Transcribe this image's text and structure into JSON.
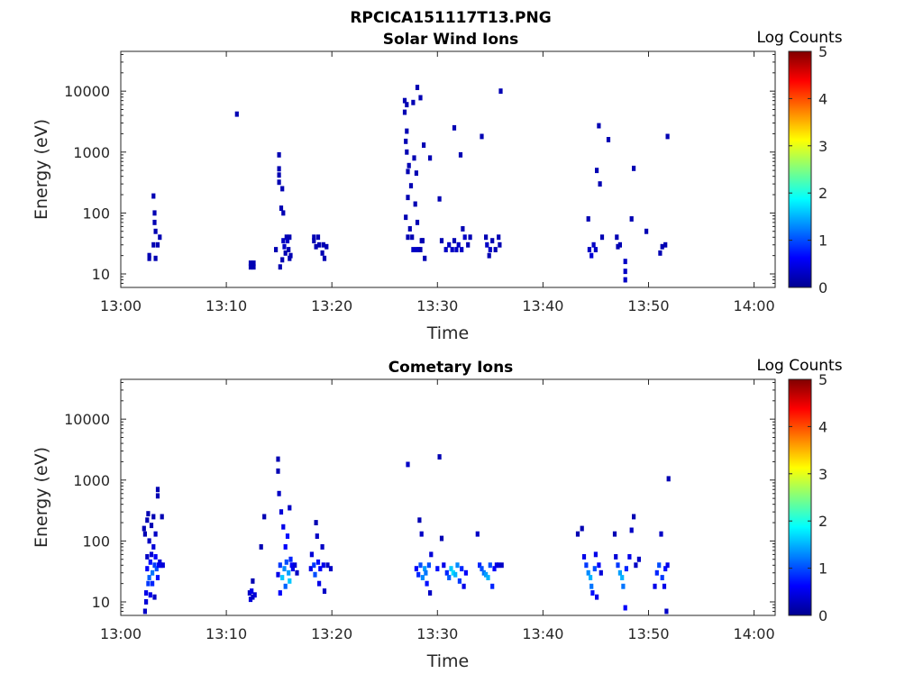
{
  "figure_title": "RPCICA151117T13.PNG",
  "colors": {
    "colormap": [
      "#00008f",
      "#0000ff",
      "#00ffff",
      "#ffff00",
      "#ff0000",
      "#800000"
    ]
  },
  "chart_data": [
    {
      "type": "heatmap",
      "title": "Solar Wind Ions",
      "xlabel": "Time",
      "ylabel": "Energy (eV)",
      "x_ticks": [
        "13:00",
        "13:10",
        "13:20",
        "13:30",
        "13:40",
        "13:50",
        "14:00"
      ],
      "x_range_minutes": [
        0,
        62
      ],
      "y_scale": "log",
      "y_range": [
        6,
        45000
      ],
      "y_ticks": [
        10,
        100,
        1000,
        10000
      ],
      "y_tick_labels": [
        "10",
        "100",
        "1000",
        "10000"
      ],
      "colorbar": {
        "label": "Log Counts",
        "range": [
          0,
          5
        ],
        "ticks": [
          "0",
          "1",
          "2",
          "3",
          "4",
          "5"
        ]
      },
      "cells": [
        [
          2.7,
          18,
          0.2
        ],
        [
          2.7,
          20,
          0.2
        ],
        [
          3.1,
          190,
          0.2
        ],
        [
          3.1,
          30,
          0.2
        ],
        [
          3.2,
          100,
          0.2
        ],
        [
          3.2,
          70,
          0.2
        ],
        [
          3.3,
          50,
          0.2
        ],
        [
          3.3,
          18,
          0.2
        ],
        [
          3.5,
          30,
          0.2
        ],
        [
          3.7,
          40,
          0.2
        ],
        [
          11.0,
          4200,
          0.2
        ],
        [
          12.3,
          13,
          0.2
        ],
        [
          12.3,
          15,
          0.2
        ],
        [
          12.6,
          13,
          0.2
        ],
        [
          12.6,
          15,
          0.2
        ],
        [
          14.7,
          25,
          0.2
        ],
        [
          15.0,
          900,
          0.2
        ],
        [
          15.0,
          530,
          0.2
        ],
        [
          15.0,
          420,
          0.2
        ],
        [
          15.0,
          320,
          0.2
        ],
        [
          15.1,
          13,
          0.2
        ],
        [
          15.2,
          120,
          0.2
        ],
        [
          15.3,
          250,
          0.2
        ],
        [
          15.3,
          17,
          0.2
        ],
        [
          15.4,
          35,
          0.3
        ],
        [
          15.4,
          100,
          0.2
        ],
        [
          15.5,
          28,
          0.3
        ],
        [
          15.6,
          22,
          0.2
        ],
        [
          15.7,
          40,
          0.2
        ],
        [
          15.8,
          35,
          0.3
        ],
        [
          15.9,
          25,
          0.2
        ],
        [
          16.0,
          18,
          0.2
        ],
        [
          16.0,
          40,
          0.2
        ],
        [
          16.1,
          20,
          0.2
        ],
        [
          18.3,
          40,
          0.2
        ],
        [
          18.3,
          35,
          0.2
        ],
        [
          18.5,
          28,
          0.2
        ],
        [
          18.7,
          40,
          0.2
        ],
        [
          18.8,
          30,
          0.2
        ],
        [
          19.1,
          22,
          0.2
        ],
        [
          19.2,
          30,
          0.2
        ],
        [
          19.3,
          18,
          0.2
        ],
        [
          19.5,
          28,
          0.2
        ],
        [
          26.9,
          7000,
          0.2
        ],
        [
          26.9,
          4500,
          0.2
        ],
        [
          27.0,
          1500,
          0.2
        ],
        [
          27.0,
          85,
          0.2
        ],
        [
          27.1,
          6000,
          0.2
        ],
        [
          27.1,
          2200,
          0.2
        ],
        [
          27.1,
          1000,
          0.2
        ],
        [
          27.2,
          480,
          0.2
        ],
        [
          27.2,
          180,
          0.2
        ],
        [
          27.2,
          40,
          0.2
        ],
        [
          27.3,
          600,
          0.2
        ],
        [
          27.4,
          55,
          0.2
        ],
        [
          27.5,
          280,
          0.2
        ],
        [
          27.6,
          40,
          0.2
        ],
        [
          27.7,
          6500,
          0.2
        ],
        [
          27.7,
          25,
          0.3
        ],
        [
          27.8,
          800,
          0.2
        ],
        [
          27.9,
          140,
          0.2
        ],
        [
          28.0,
          450,
          0.2
        ],
        [
          28.0,
          25,
          0.3
        ],
        [
          28.1,
          11500,
          0.2
        ],
        [
          28.1,
          70,
          0.2
        ],
        [
          28.2,
          25,
          0.3
        ],
        [
          28.4,
          7800,
          0.2
        ],
        [
          28.4,
          25,
          0.2
        ],
        [
          28.5,
          35,
          0.2
        ],
        [
          28.6,
          35,
          0.2
        ],
        [
          28.7,
          1300,
          0.2
        ],
        [
          28.8,
          18,
          0.2
        ],
        [
          29.3,
          800,
          0.2
        ],
        [
          30.2,
          170,
          0.2
        ],
        [
          30.4,
          35,
          0.2
        ],
        [
          30.8,
          25,
          0.3
        ],
        [
          31.1,
          30,
          0.3
        ],
        [
          31.4,
          25,
          0.3
        ],
        [
          31.6,
          2500,
          0.2
        ],
        [
          31.6,
          35,
          0.2
        ],
        [
          31.8,
          25,
          0.3
        ],
        [
          32.0,
          30,
          0.3
        ],
        [
          32.2,
          900,
          0.2
        ],
        [
          32.3,
          25,
          0.3
        ],
        [
          32.4,
          55,
          0.2
        ],
        [
          32.6,
          40,
          0.3
        ],
        [
          32.9,
          30,
          0.2
        ],
        [
          33.1,
          40,
          0.2
        ],
        [
          34.2,
          1800,
          0.2
        ],
        [
          34.6,
          40,
          0.2
        ],
        [
          34.7,
          30,
          0.3
        ],
        [
          34.9,
          20,
          0.2
        ],
        [
          35.0,
          25,
          0.3
        ],
        [
          35.2,
          35,
          0.2
        ],
        [
          35.5,
          25,
          0.2
        ],
        [
          35.8,
          40,
          0.2
        ],
        [
          35.9,
          30,
          0.2
        ],
        [
          36.0,
          10000,
          0.2
        ],
        [
          44.3,
          80,
          0.2
        ],
        [
          44.4,
          25,
          0.3
        ],
        [
          44.6,
          20,
          0.4
        ],
        [
          44.8,
          30,
          0.3
        ],
        [
          45.0,
          25,
          0.3
        ],
        [
          45.1,
          500,
          0.2
        ],
        [
          45.3,
          2700,
          0.2
        ],
        [
          45.4,
          300,
          0.2
        ],
        [
          45.6,
          40,
          0.2
        ],
        [
          46.2,
          1600,
          0.2
        ],
        [
          47.0,
          40,
          0.2
        ],
        [
          47.1,
          28,
          0.2
        ],
        [
          47.3,
          30,
          0.2
        ],
        [
          47.8,
          16,
          0.3
        ],
        [
          47.8,
          11,
          0.3
        ],
        [
          47.8,
          8,
          0.3
        ],
        [
          48.4,
          80,
          0.2
        ],
        [
          48.6,
          540,
          0.2
        ],
        [
          49.8,
          50,
          0.2
        ],
        [
          51.1,
          22,
          0.2
        ],
        [
          51.3,
          28,
          0.2
        ],
        [
          51.6,
          30,
          0.2
        ],
        [
          51.8,
          1800,
          0.2
        ]
      ]
    },
    {
      "type": "heatmap",
      "title": "Cometary Ions",
      "xlabel": "Time",
      "ylabel": "Energy (eV)",
      "x_ticks": [
        "13:00",
        "13:10",
        "13:20",
        "13:30",
        "13:40",
        "13:50",
        "14:00"
      ],
      "x_range_minutes": [
        0,
        62
      ],
      "y_scale": "log",
      "y_range": [
        6,
        45000
      ],
      "y_ticks": [
        10,
        100,
        1000,
        10000
      ],
      "y_tick_labels": [
        "10",
        "100",
        "1000",
        "10000"
      ],
      "colorbar": {
        "label": "Log Counts",
        "range": [
          0,
          5
        ],
        "ticks": [
          "0",
          "1",
          "2",
          "3",
          "4",
          "5"
        ]
      },
      "cells": [
        [
          2.2,
          160,
          0.2
        ],
        [
          2.3,
          130,
          0.2
        ],
        [
          2.3,
          7,
          0.3
        ],
        [
          2.4,
          10,
          0.4
        ],
        [
          2.4,
          14,
          0.5
        ],
        [
          2.5,
          220,
          0.2
        ],
        [
          2.5,
          55,
          0.3
        ],
        [
          2.5,
          35,
          0.6
        ],
        [
          2.6,
          20,
          0.9
        ],
        [
          2.6,
          280,
          0.2
        ],
        [
          2.7,
          100,
          0.3
        ],
        [
          2.7,
          25,
          1.1
        ],
        [
          2.8,
          13,
          0.5
        ],
        [
          2.8,
          45,
          0.7
        ],
        [
          2.9,
          180,
          0.2
        ],
        [
          2.9,
          60,
          0.4
        ],
        [
          3.0,
          30,
          1.2
        ],
        [
          3.0,
          20,
          0.8
        ],
        [
          3.1,
          250,
          0.2
        ],
        [
          3.1,
          80,
          0.4
        ],
        [
          3.2,
          40,
          0.9
        ],
        [
          3.2,
          12,
          0.3
        ],
        [
          3.3,
          130,
          0.3
        ],
        [
          3.3,
          55,
          0.6
        ],
        [
          3.4,
          35,
          1.0
        ],
        [
          3.5,
          700,
          0.2
        ],
        [
          3.5,
          550,
          0.2
        ],
        [
          3.5,
          25,
          0.7
        ],
        [
          3.6,
          40,
          0.6
        ],
        [
          3.7,
          45,
          0.4
        ],
        [
          3.8,
          40,
          0.5
        ],
        [
          3.9,
          250,
          0.2
        ],
        [
          4.0,
          40,
          0.4
        ],
        [
          12.2,
          14,
          0.3
        ],
        [
          12.3,
          11,
          0.4
        ],
        [
          12.4,
          15,
          0.5
        ],
        [
          12.5,
          12,
          0.3
        ],
        [
          12.5,
          22,
          0.2
        ],
        [
          12.7,
          13,
          0.4
        ],
        [
          13.3,
          80,
          0.2
        ],
        [
          13.6,
          250,
          0.2
        ],
        [
          14.9,
          2200,
          0.2
        ],
        [
          14.9,
          1400,
          0.2
        ],
        [
          14.9,
          28,
          0.5
        ],
        [
          15.0,
          600,
          0.3
        ],
        [
          15.1,
          40,
          0.9
        ],
        [
          15.1,
          14,
          0.6
        ],
        [
          15.2,
          300,
          0.4
        ],
        [
          15.3,
          25,
          1.6
        ],
        [
          15.4,
          170,
          0.5
        ],
        [
          15.5,
          35,
          1.3
        ],
        [
          15.6,
          18,
          1.1
        ],
        [
          15.6,
          80,
          0.6
        ],
        [
          15.7,
          45,
          1.0
        ],
        [
          15.8,
          120,
          0.7
        ],
        [
          15.9,
          30,
          1.4
        ],
        [
          16.0,
          22,
          1.6
        ],
        [
          16.0,
          350,
          0.3
        ],
        [
          16.1,
          50,
          0.8
        ],
        [
          16.2,
          40,
          0.6
        ],
        [
          16.3,
          35,
          0.5
        ],
        [
          16.5,
          40,
          0.4
        ],
        [
          16.7,
          30,
          0.3
        ],
        [
          18.0,
          35,
          0.5
        ],
        [
          18.1,
          60,
          0.4
        ],
        [
          18.3,
          40,
          0.9
        ],
        [
          18.4,
          28,
          1.0
        ],
        [
          18.5,
          200,
          0.2
        ],
        [
          18.6,
          120,
          0.3
        ],
        [
          18.7,
          45,
          0.7
        ],
        [
          18.8,
          20,
          0.5
        ],
        [
          18.9,
          35,
          0.6
        ],
        [
          19.1,
          80,
          0.3
        ],
        [
          19.2,
          40,
          0.5
        ],
        [
          19.3,
          15,
          0.3
        ],
        [
          19.6,
          40,
          0.3
        ],
        [
          19.9,
          35,
          0.3
        ],
        [
          27.2,
          1800,
          0.3
        ],
        [
          28.0,
          35,
          0.6
        ],
        [
          28.2,
          28,
          0.8
        ],
        [
          28.3,
          220,
          0.2
        ],
        [
          28.4,
          40,
          1.0
        ],
        [
          28.5,
          130,
          0.3
        ],
        [
          28.6,
          25,
          1.3
        ],
        [
          28.8,
          35,
          1.4
        ],
        [
          28.9,
          30,
          1.2
        ],
        [
          29.0,
          20,
          0.7
        ],
        [
          29.2,
          40,
          1.0
        ],
        [
          29.3,
          14,
          0.3
        ],
        [
          29.4,
          60,
          0.4
        ],
        [
          30.0,
          35,
          0.7
        ],
        [
          30.2,
          2400,
          0.2
        ],
        [
          30.4,
          110,
          0.2
        ],
        [
          30.6,
          40,
          0.5
        ],
        [
          30.9,
          30,
          0.8
        ],
        [
          31.1,
          25,
          1.1
        ],
        [
          31.3,
          35,
          1.6
        ],
        [
          31.5,
          30,
          1.7
        ],
        [
          31.7,
          28,
          1.5
        ],
        [
          31.9,
          40,
          1.3
        ],
        [
          32.1,
          22,
          0.9
        ],
        [
          32.3,
          35,
          0.8
        ],
        [
          32.5,
          18,
          0.5
        ],
        [
          32.7,
          30,
          0.6
        ],
        [
          33.8,
          130,
          0.3
        ],
        [
          34.0,
          40,
          0.8
        ],
        [
          34.2,
          35,
          1.0
        ],
        [
          34.4,
          30,
          1.2
        ],
        [
          34.6,
          28,
          1.4
        ],
        [
          34.8,
          25,
          1.5
        ],
        [
          35.0,
          40,
          1.0
        ],
        [
          35.2,
          18,
          0.8
        ],
        [
          35.4,
          35,
          0.6
        ],
        [
          35.6,
          40,
          0.5
        ],
        [
          35.8,
          40,
          0.4
        ],
        [
          36.1,
          40,
          0.3
        ],
        [
          43.3,
          130,
          0.2
        ],
        [
          43.7,
          160,
          0.2
        ],
        [
          43.9,
          55,
          0.5
        ],
        [
          44.1,
          40,
          0.9
        ],
        [
          44.3,
          30,
          1.3
        ],
        [
          44.5,
          25,
          1.5
        ],
        [
          44.6,
          18,
          1.2
        ],
        [
          44.7,
          14,
          0.7
        ],
        [
          44.9,
          35,
          1.0
        ],
        [
          45.0,
          60,
          0.5
        ],
        [
          45.1,
          12,
          0.5
        ],
        [
          45.3,
          40,
          0.6
        ],
        [
          45.5,
          30,
          0.4
        ],
        [
          46.8,
          130,
          0.2
        ],
        [
          46.9,
          55,
          0.4
        ],
        [
          47.1,
          40,
          0.9
        ],
        [
          47.3,
          30,
          1.4
        ],
        [
          47.5,
          25,
          1.5
        ],
        [
          47.6,
          18,
          1.2
        ],
        [
          47.8,
          8,
          0.6
        ],
        [
          47.9,
          35,
          0.8
        ],
        [
          48.2,
          55,
          0.5
        ],
        [
          48.4,
          150,
          0.3
        ],
        [
          48.6,
          250,
          0.2
        ],
        [
          48.8,
          40,
          0.3
        ],
        [
          49.1,
          50,
          0.3
        ],
        [
          50.6,
          18,
          0.5
        ],
        [
          50.8,
          30,
          0.8
        ],
        [
          51.0,
          40,
          1.0
        ],
        [
          51.2,
          130,
          0.3
        ],
        [
          51.3,
          25,
          0.9
        ],
        [
          51.5,
          18,
          0.5
        ],
        [
          51.6,
          35,
          0.7
        ],
        [
          51.7,
          7,
          0.3
        ],
        [
          51.8,
          40,
          0.5
        ],
        [
          51.9,
          1050,
          0.2
        ]
      ]
    }
  ]
}
